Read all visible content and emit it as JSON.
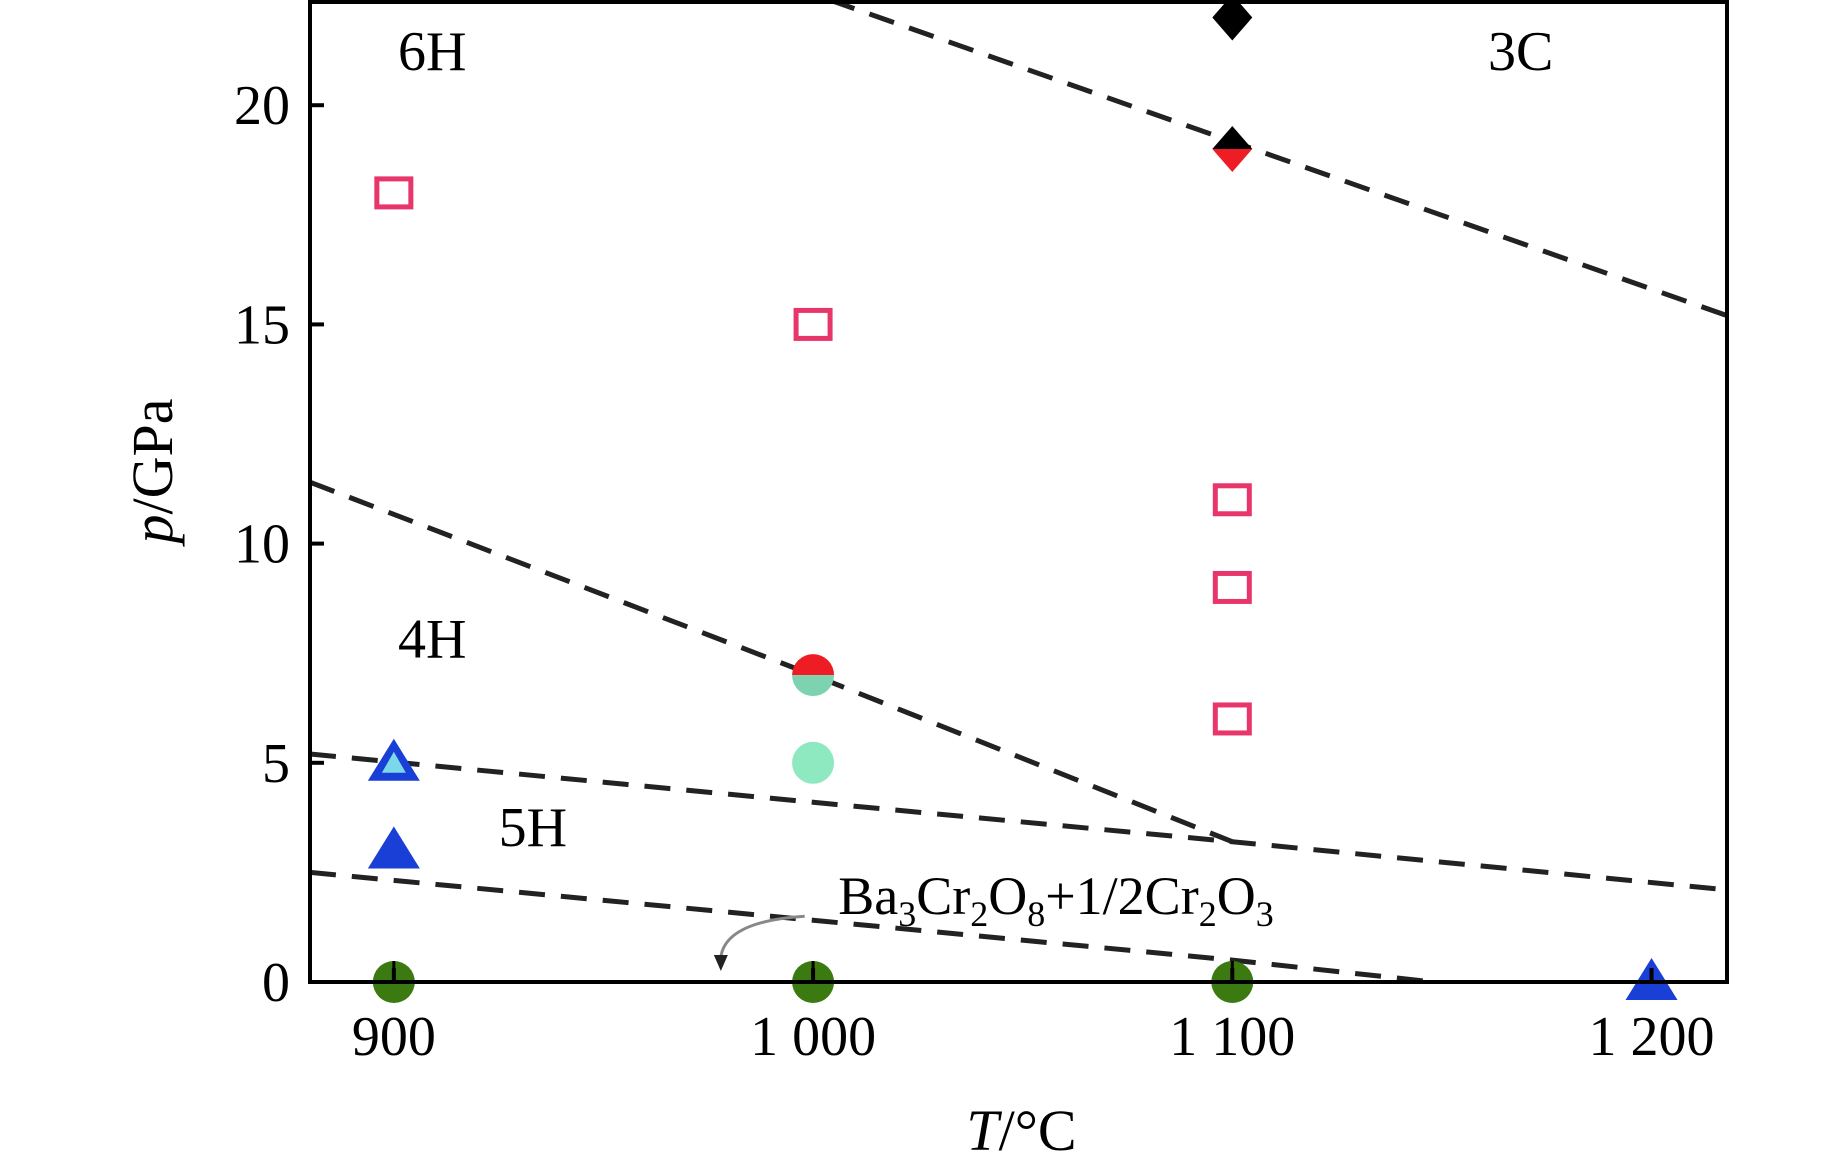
{
  "chart_data": {
    "type": "scatter",
    "xlabel_italic": "T",
    "xlabel_rest": "/°C",
    "ylabel_italic": "p",
    "ylabel_rest": "/GPa",
    "xlim": [
      880,
      1218
    ],
    "ylim": [
      0,
      22.4
    ],
    "x_ticks": [
      {
        "value": 900,
        "label": "900"
      },
      {
        "value": 1000,
        "label": "1 000"
      },
      {
        "value": 1100,
        "label": "1 100"
      },
      {
        "value": 1200,
        "label": "1 200"
      }
    ],
    "y_ticks": [
      {
        "value": 0,
        "label": "0"
      },
      {
        "value": 5,
        "label": "5"
      },
      {
        "value": 10,
        "label": "10"
      },
      {
        "value": 15,
        "label": "15"
      },
      {
        "value": 20,
        "label": "20"
      }
    ],
    "regions": [
      {
        "label": "6H",
        "x": 901,
        "y": 20.8
      },
      {
        "label": "3C",
        "x": 1161,
        "y": 20.8
      },
      {
        "label": "4H",
        "x": 901,
        "y": 7.4
      },
      {
        "label": "5H",
        "x": 925,
        "y": 3.1
      }
    ],
    "annotation": {
      "base": "Ba",
      "parts": [
        {
          "t": "Ba",
          "sub": false
        },
        {
          "t": "3",
          "sub": true
        },
        {
          "t": "Cr",
          "sub": false
        },
        {
          "t": "2",
          "sub": true
        },
        {
          "t": "O",
          "sub": false
        },
        {
          "t": "8",
          "sub": true
        },
        {
          "t": "+1/2Cr",
          "sub": false
        },
        {
          "t": "2",
          "sub": true
        },
        {
          "t": "O",
          "sub": false
        },
        {
          "t": "3",
          "sub": true
        }
      ],
      "x": 1006,
      "y": 1.55,
      "arrow_from": [
        998,
        1.5
      ],
      "arrow_to": [
        978,
        0.25
      ]
    },
    "boundaries": [
      {
        "name": "6H-3C",
        "points": [
          [
            1004,
            22.4
          ],
          [
            1218,
            15.2
          ]
        ]
      },
      {
        "name": "4H-6H",
        "points": [
          [
            880,
            11.4
          ],
          [
            1000,
            7.0
          ],
          [
            1100,
            3.2
          ]
        ]
      },
      {
        "name": "5H-4H",
        "points": [
          [
            880,
            5.2
          ],
          [
            1000,
            4.1
          ],
          [
            1100,
            3.2
          ],
          [
            1218,
            2.1
          ]
        ]
      },
      {
        "name": "Ba3Cr2O8-5H",
        "points": [
          [
            880,
            2.5
          ],
          [
            1100,
            0.5
          ],
          [
            1148,
            0.0
          ]
        ]
      }
    ],
    "series": [
      {
        "marker": "diamond",
        "fill": "#000000",
        "points": [
          [
            1100,
            22
          ]
        ]
      },
      {
        "marker": "diamond-split",
        "top": "#000000",
        "bottom": "#ee1c25",
        "points": [
          [
            1100,
            19
          ]
        ]
      },
      {
        "marker": "open-square",
        "stroke": "#e8356a",
        "points": [
          [
            900,
            18
          ],
          [
            1000,
            15
          ],
          [
            1100,
            11
          ],
          [
            1100,
            9
          ],
          [
            1100,
            6
          ]
        ]
      },
      {
        "marker": "circle-split",
        "top": "#ee1c25",
        "bottom": "#7dd3b0",
        "points": [
          [
            1000,
            7
          ]
        ]
      },
      {
        "marker": "circle",
        "fill": "#8ee8c0",
        "points": [
          [
            1000,
            5
          ]
        ]
      },
      {
        "marker": "triangle",
        "fill": "#1a3fd6",
        "inner": "#7ad8e8",
        "points": [
          [
            900,
            5
          ]
        ]
      },
      {
        "marker": "triangle",
        "fill": "#1a3fd6",
        "points": [
          [
            900,
            3
          ]
        ]
      },
      {
        "marker": "circle",
        "fill": "#3a7a10",
        "points": [
          [
            900,
            0
          ],
          [
            1000,
            0
          ],
          [
            1100,
            0
          ]
        ]
      },
      {
        "marker": "triangle",
        "fill": "#1a3fd6",
        "points": [
          [
            1200,
            0
          ]
        ]
      }
    ]
  }
}
